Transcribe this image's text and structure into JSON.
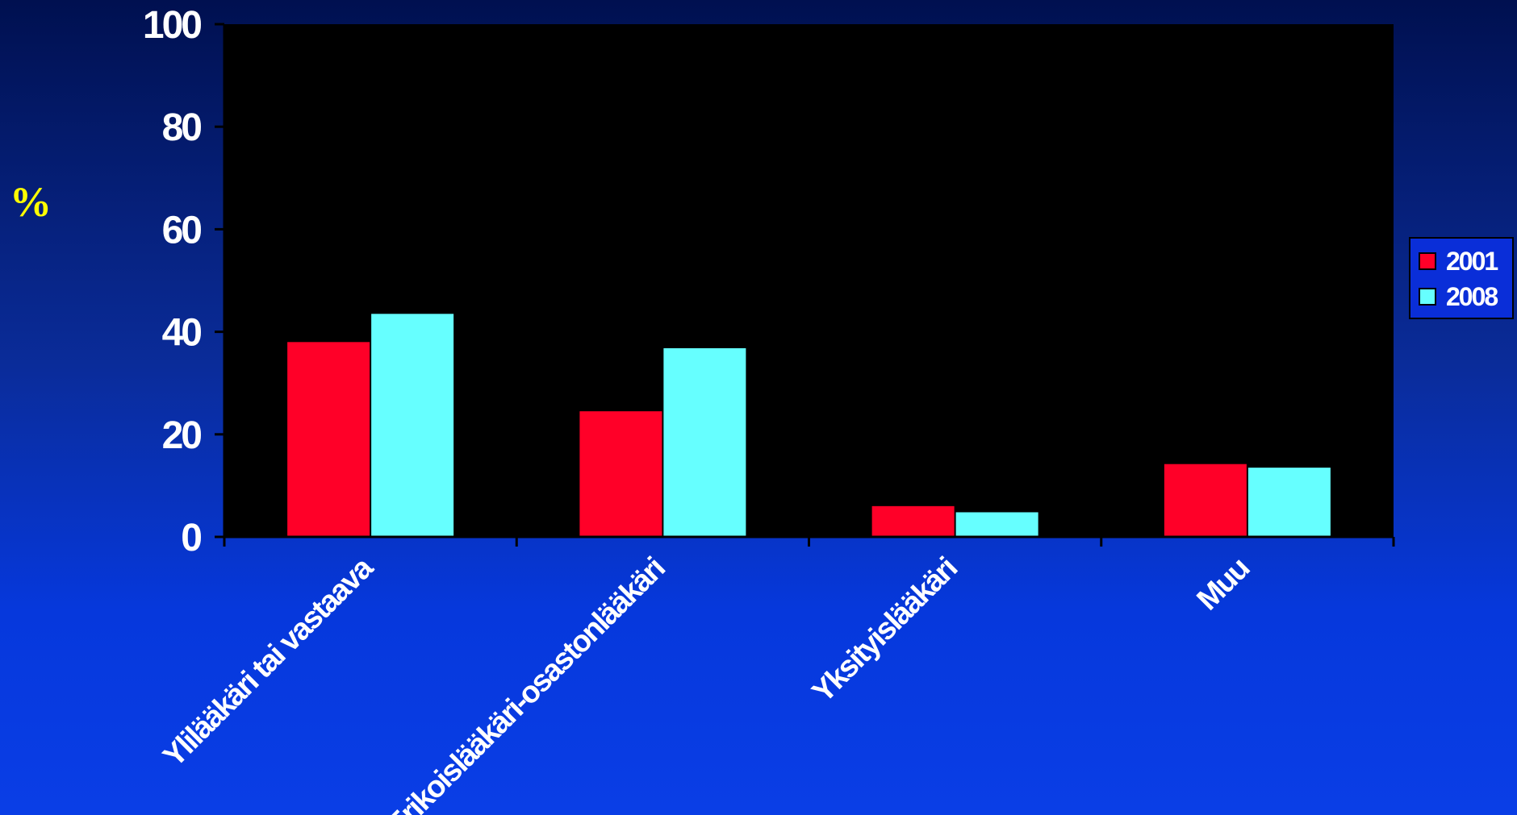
{
  "chart_data": {
    "type": "bar",
    "categories": [
      "Ylilääkäri tai vastaava",
      "Erikoislääkäri-osastonlääkäri",
      "Yksityislääkäri",
      "Muu"
    ],
    "series": [
      {
        "name": "2001",
        "values": [
          38,
          24.5,
          6,
          14.2
        ],
        "color": "#ff0028"
      },
      {
        "name": "2008",
        "values": [
          43.5,
          36.8,
          4.8,
          13.5
        ],
        "color": "#66ffff"
      }
    ],
    "ylabel": "%",
    "ylim": [
      0,
      100
    ],
    "yticks": [
      "0",
      "20",
      "40",
      "60",
      "80",
      "100"
    ],
    "legend": "right",
    "grid": false
  }
}
